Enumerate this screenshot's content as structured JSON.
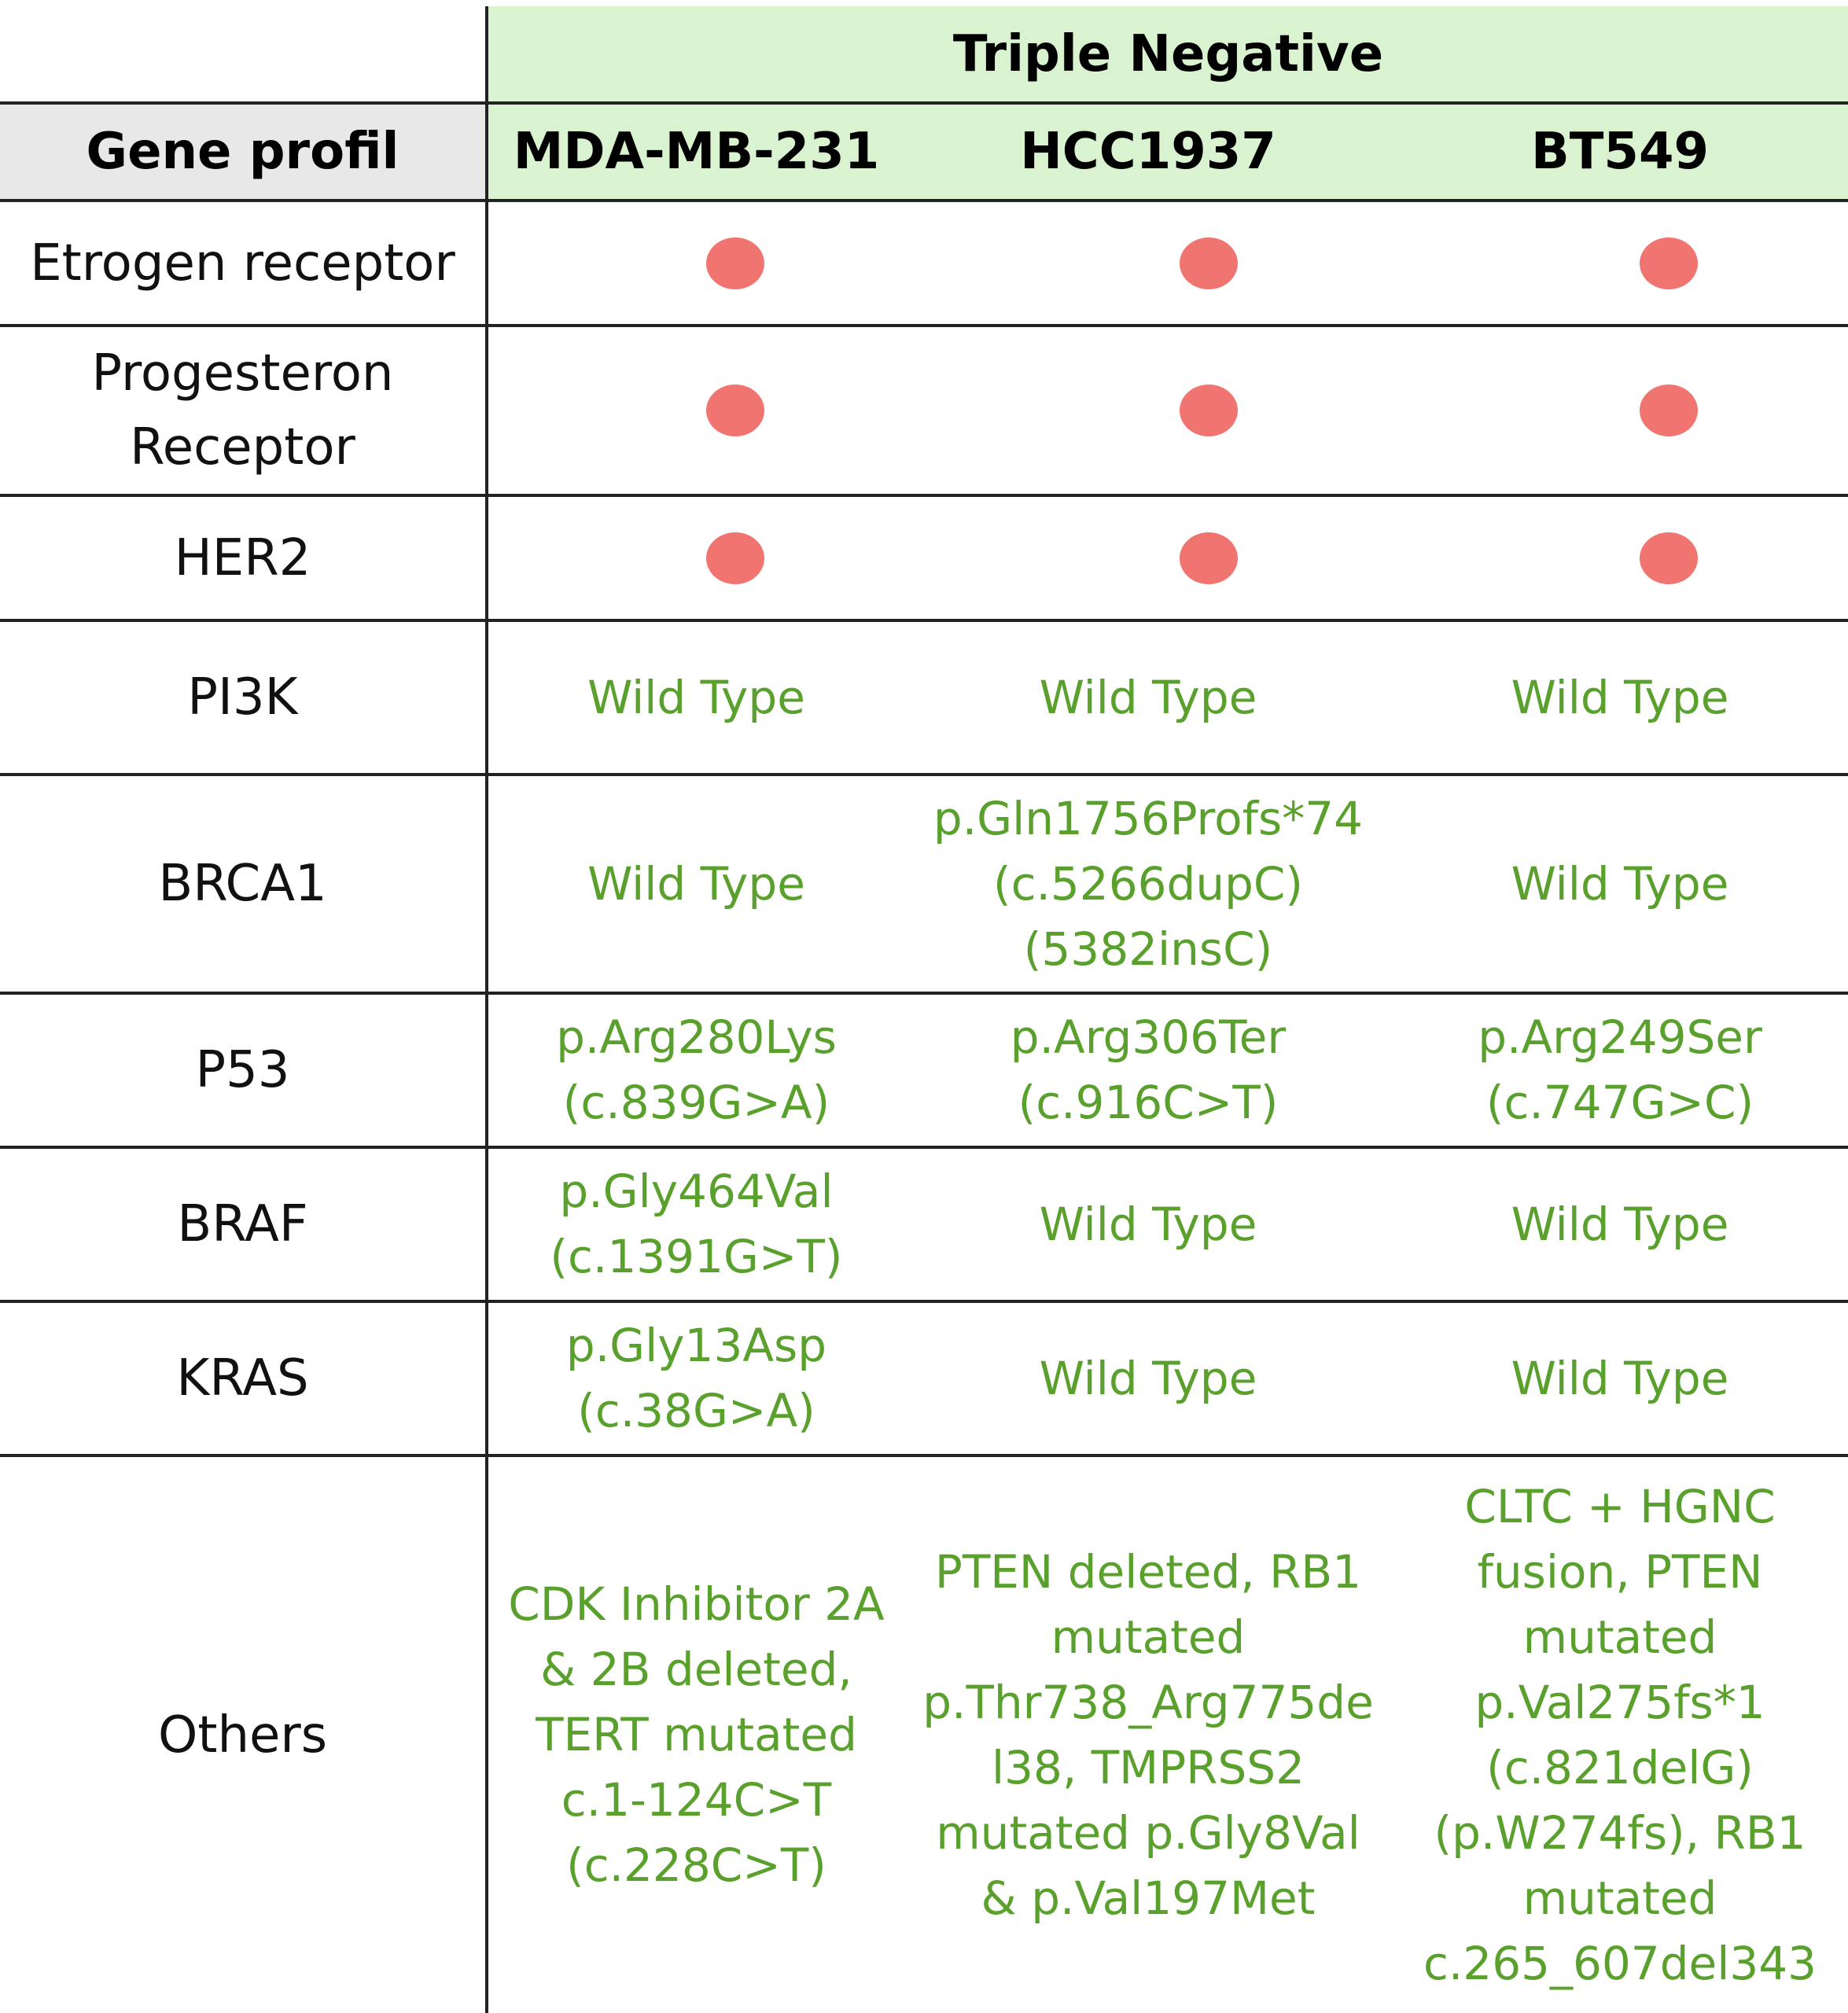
{
  "header": {
    "group_label": "Triple Negative",
    "gene_profil_label": "Gene profil",
    "cell_lines": [
      "MDA-MB-231",
      "HCC1937",
      "BT549"
    ]
  },
  "colors": {
    "header_bg": "#d9f2d0",
    "label_header_bg": "#e8e8e8",
    "value_text": "#5aa02c",
    "negative_marker": "#f07470"
  },
  "legend_markers": {
    "negative": "red-dot-icon"
  },
  "rows": [
    {
      "gene": "Etrogen receptor",
      "values": [
        "negative",
        "negative",
        "negative"
      ]
    },
    {
      "gene": "Progesteron\nReceptor",
      "values": [
        "negative",
        "negative",
        "negative"
      ]
    },
    {
      "gene": "HER2",
      "values": [
        "negative",
        "negative",
        "negative"
      ]
    },
    {
      "gene": "PI3K",
      "values": [
        "Wild Type",
        "Wild Type",
        "Wild Type"
      ]
    },
    {
      "gene": "BRCA1",
      "values": [
        "Wild Type",
        "p.Gln1756Profs*74\n(c.5266dupC)\n(5382insC)",
        "Wild Type"
      ]
    },
    {
      "gene": "P53",
      "values": [
        "p.Arg280Lys\n(c.839G>A)",
        "p.Arg306Ter\n(c.916C>T)",
        "p.Arg249Ser\n(c.747G>C)"
      ]
    },
    {
      "gene": "BRAF",
      "values": [
        "p.Gly464Val\n(c.1391G>T)",
        "Wild Type",
        "Wild Type"
      ]
    },
    {
      "gene": "KRAS",
      "values": [
        "p.Gly13Asp\n(c.38G>A)",
        "Wild Type",
        "Wild Type"
      ]
    },
    {
      "gene": "Others",
      "values": [
        "CDK Inhibitor 2A\n& 2B deleted,\nTERT mutated\nc.1-124C>T\n(c.228C>T)",
        "PTEN deleted, RB1\nmutated\np.Thr738_Arg775de\nl38, TMPRSS2\nmutated p.Gly8Val\n& p.Val197Met",
        "CLTC + HGNC\nfusion, PTEN\nmutated\np.Val275fs*1\n(c.821delG)\n(p.W274fs), RB1\nmutated\nc.265_607del343"
      ]
    }
  ]
}
